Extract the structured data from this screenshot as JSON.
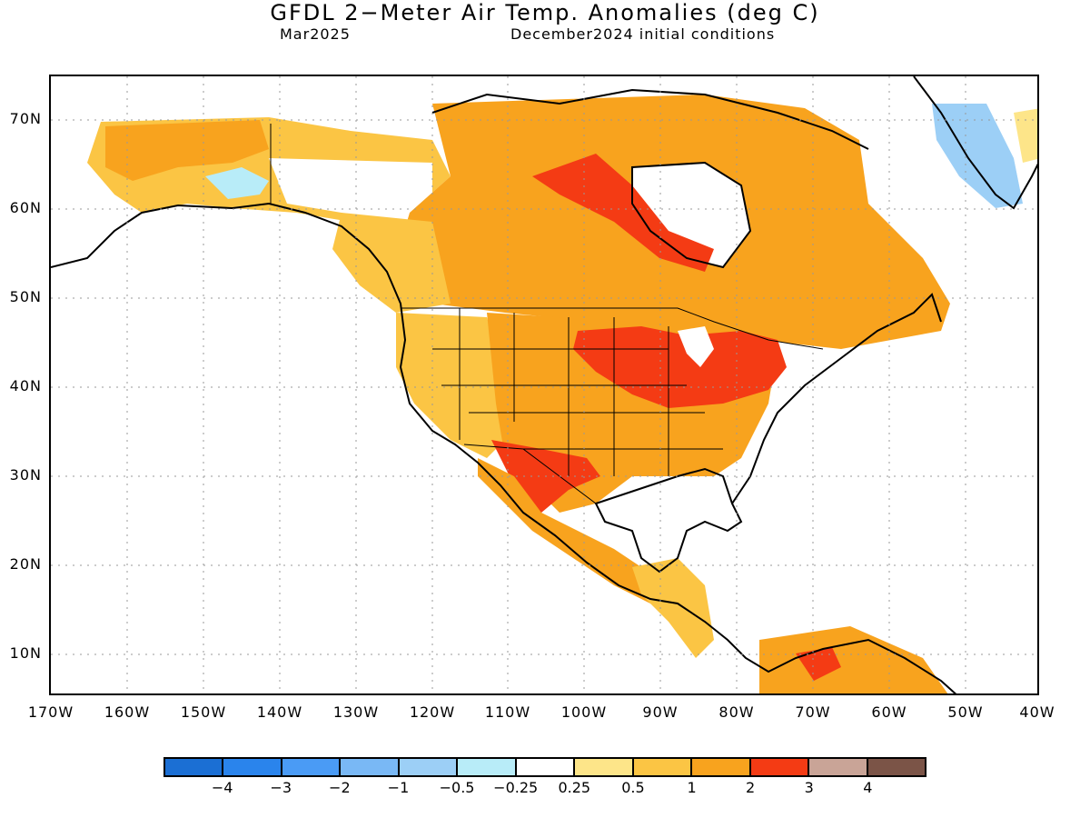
{
  "title": "GFDL 2−Meter Air Temp. Anomalies (deg C)",
  "subtitle_left": "Mar2025",
  "subtitle_right": "December2024 initial conditions",
  "lat_labels": [
    "70N",
    "60N",
    "50N",
    "40N",
    "30N",
    "20N",
    "10N"
  ],
  "lon_labels": [
    "170W",
    "160W",
    "150W",
    "140W",
    "130W",
    "120W",
    "110W",
    "100W",
    "90W",
    "80W",
    "70W",
    "60W",
    "50W",
    "40W"
  ],
  "colorbar": {
    "colors": [
      "#1b6fd4",
      "#2a84ec",
      "#4a9bf5",
      "#79b8f5",
      "#9ccff6",
      "#b8ecf8",
      "#ffffff",
      "#fde589",
      "#fbc544",
      "#f8a31e",
      "#f43b14",
      "#c9a497",
      "#7b5447"
    ],
    "labels": [
      "−4",
      "−3",
      "−2",
      "−1",
      "−0.5",
      "−0.25",
      "0.25",
      "0.5",
      "1",
      "2",
      "3",
      "4"
    ]
  },
  "map_regions": [
    {
      "name": "alaska-south-coast-warm",
      "color": "#fbc544"
    },
    {
      "name": "yukon-cool-anomaly",
      "color": "#b8ecf8"
    },
    {
      "name": "canadian-shield-warm",
      "color": "#f8a31e"
    },
    {
      "name": "hudson-bay-west-hot",
      "color": "#f43b14"
    },
    {
      "name": "western-us-mild",
      "color": "#fbc544"
    },
    {
      "name": "central-us-warm",
      "color": "#f8a31e"
    },
    {
      "name": "midwest-great-lakes-hot",
      "color": "#f43b14"
    },
    {
      "name": "texas-mexico-hot",
      "color": "#f43b14"
    },
    {
      "name": "greenland-cool",
      "color": "#9ccff6"
    },
    {
      "name": "venezuela-hot",
      "color": "#f43b14"
    }
  ]
}
